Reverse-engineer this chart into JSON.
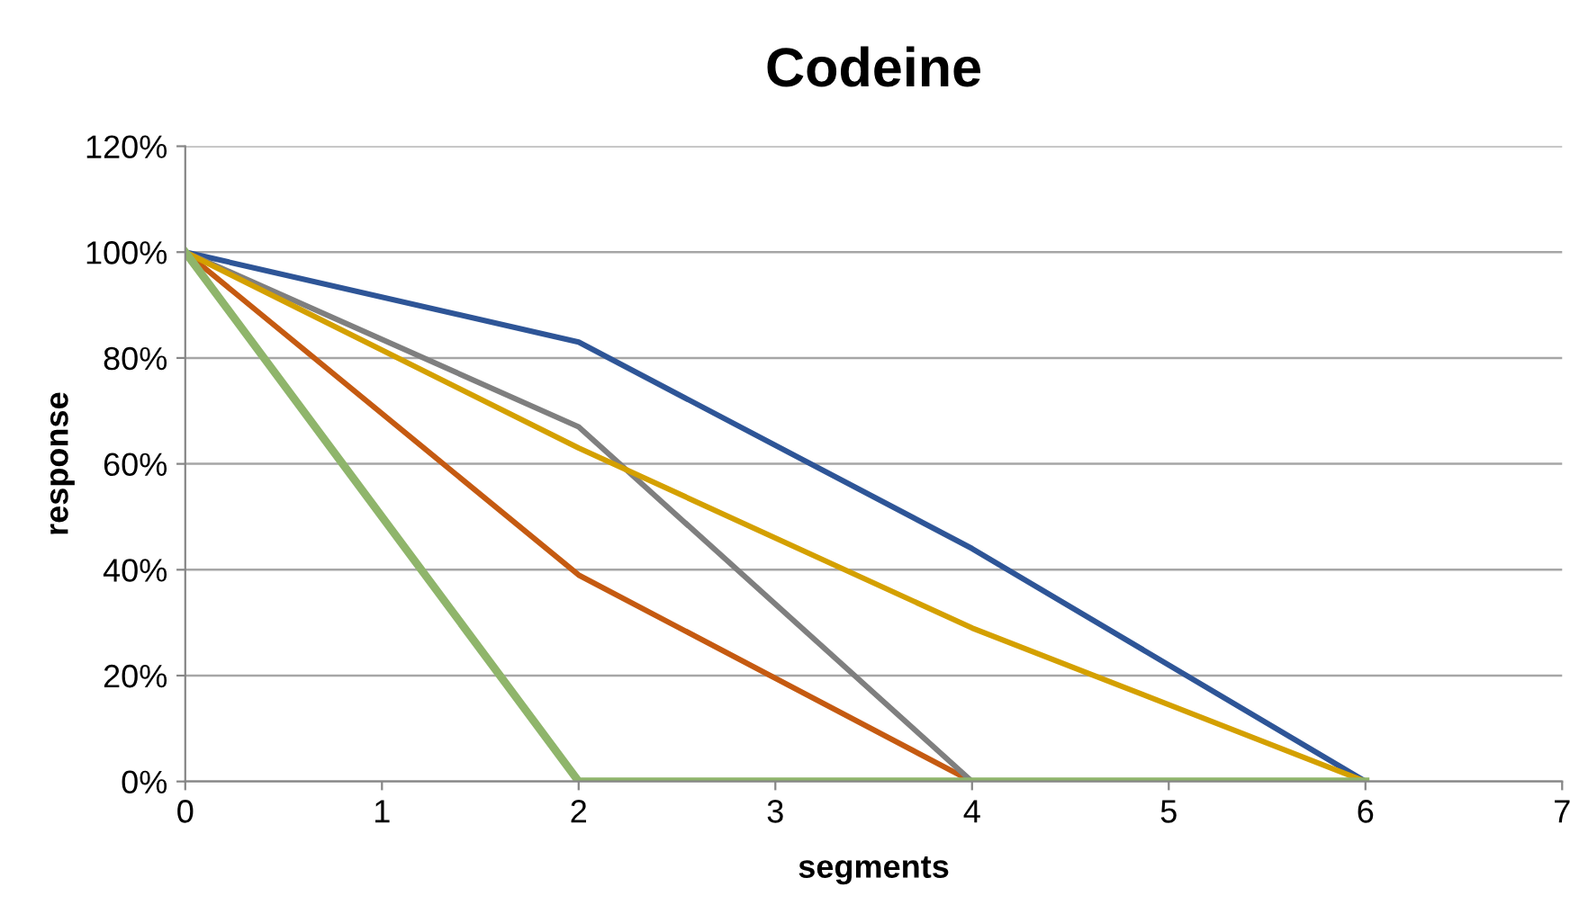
{
  "chart_data": {
    "type": "line",
    "title": "Codeine",
    "xlabel": "segments",
    "ylabel": "response",
    "xlim": [
      0,
      7
    ],
    "xticks": [
      0,
      1,
      2,
      3,
      4,
      5,
      6,
      7
    ],
    "ylim": [
      0,
      120
    ],
    "yticks": [
      {
        "value": 0,
        "label": "0%"
      },
      {
        "value": 20,
        "label": "20%"
      },
      {
        "value": 40,
        "label": "40%"
      },
      {
        "value": 60,
        "label": "60%"
      },
      {
        "value": 80,
        "label": "80%"
      },
      {
        "value": 100,
        "label": "100%"
      },
      {
        "value": 120,
        "label": "120%"
      }
    ],
    "grid": "y",
    "marker": "none",
    "line_style": "solid",
    "series": [
      {
        "color": "#2e5597",
        "x": [
          0,
          2,
          4,
          6
        ],
        "values": [
          100,
          83,
          44,
          0
        ]
      },
      {
        "color": "#c55a11",
        "x": [
          0,
          2,
          4,
          6
        ],
        "values": [
          100,
          39,
          0,
          0
        ]
      },
      {
        "color": "#7f7f7f",
        "x": [
          0,
          2,
          4,
          6
        ],
        "values": [
          100,
          67,
          0,
          0
        ]
      },
      {
        "color": "#d4a000",
        "x": [
          0,
          2,
          4,
          6
        ],
        "values": [
          100,
          63,
          29,
          0
        ]
      },
      {
        "color": "#8fb56b",
        "x": [
          0,
          2,
          4,
          6
        ],
        "values": [
          100,
          0,
          0,
          0
        ]
      }
    ]
  }
}
